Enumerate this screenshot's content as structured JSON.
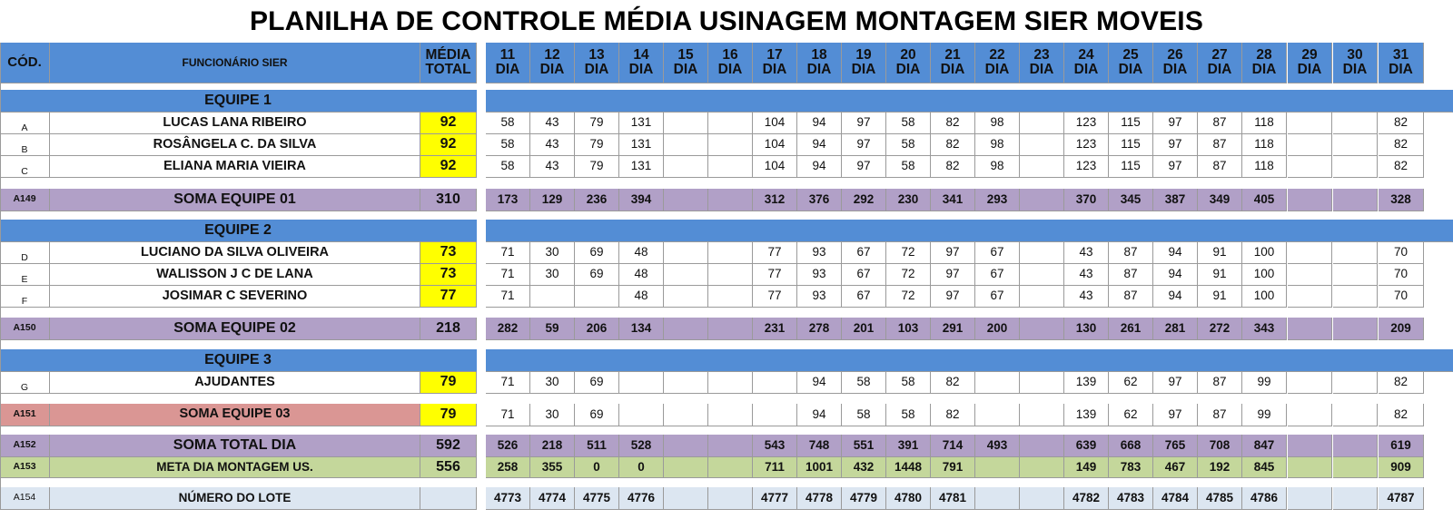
{
  "title": "PLANILHA DE CONTROLE MÉDIA USINAGEM  MONTAGEM SIER MOVEIS",
  "header": {
    "cod": "CÓD.",
    "funcionario": "FUNCIONÁRIO SIER",
    "media_l1": "MÉDIA",
    "media_l2": "TOTAL",
    "day_word": "DIA",
    "days": [
      "11",
      "12",
      "13",
      "14",
      "15",
      "16",
      "17",
      "18",
      "19",
      "20",
      "21",
      "22",
      "23",
      "24",
      "25",
      "26",
      "27",
      "28",
      "29",
      "30",
      "31"
    ]
  },
  "teams": [
    {
      "label": "EQUIPE 1",
      "members": [
        {
          "code": "A",
          "name": "LUCAS LANA RIBEIRO",
          "media": "92",
          "values": [
            "58",
            "43",
            "79",
            "131",
            "",
            "",
            "104",
            "94",
            "97",
            "58",
            "82",
            "98",
            "",
            "123",
            "115",
            "97",
            "87",
            "118",
            "",
            "",
            "82"
          ]
        },
        {
          "code": "B",
          "name": "ROSÂNGELA C. DA SILVA",
          "media": "92",
          "values": [
            "58",
            "43",
            "79",
            "131",
            "",
            "",
            "104",
            "94",
            "97",
            "58",
            "82",
            "98",
            "",
            "123",
            "115",
            "97",
            "87",
            "118",
            "",
            "",
            "82"
          ]
        },
        {
          "code": "C",
          "name": "ELIANA MARIA VIEIRA",
          "media": "92",
          "values": [
            "58",
            "43",
            "79",
            "131",
            "",
            "",
            "104",
            "94",
            "97",
            "58",
            "82",
            "98",
            "",
            "123",
            "115",
            "97",
            "87",
            "118",
            "",
            "",
            "82"
          ]
        }
      ],
      "sum": {
        "code": "A149",
        "label": "SOMA EQUIPE 01",
        "media": "310",
        "values": [
          "173",
          "129",
          "236",
          "394",
          "",
          "",
          "312",
          "376",
          "292",
          "230",
          "341",
          "293",
          "",
          "370",
          "345",
          "387",
          "349",
          "405",
          "",
          "",
          "328"
        ]
      }
    },
    {
      "label": "EQUIPE 2",
      "members": [
        {
          "code": "D",
          "name": "LUCIANO DA SILVA OLIVEIRA",
          "media": "73",
          "values": [
            "71",
            "30",
            "69",
            "48",
            "",
            "",
            "77",
            "93",
            "67",
            "72",
            "97",
            "67",
            "",
            "43",
            "87",
            "94",
            "91",
            "100",
            "",
            "",
            "70"
          ]
        },
        {
          "code": "E",
          "name": "WALISSON J C DE LANA",
          "media": "73",
          "values": [
            "71",
            "30",
            "69",
            "48",
            "",
            "",
            "77",
            "93",
            "67",
            "72",
            "97",
            "67",
            "",
            "43",
            "87",
            "94",
            "91",
            "100",
            "",
            "",
            "70"
          ]
        },
        {
          "code": "F",
          "name": "JOSIMAR C SEVERINO",
          "media": "77",
          "values": [
            "71",
            "",
            "",
            "48",
            "",
            "",
            "77",
            "93",
            "67",
            "72",
            "97",
            "67",
            "",
            "43",
            "87",
            "94",
            "91",
            "100",
            "",
            "",
            "70"
          ]
        }
      ],
      "sum": {
        "code": "A150",
        "label": "SOMA EQUIPE 02",
        "media": "218",
        "values": [
          "282",
          "59",
          "206",
          "134",
          "",
          "",
          "231",
          "278",
          "201",
          "103",
          "291",
          "200",
          "",
          "130",
          "261",
          "281",
          "272",
          "343",
          "",
          "",
          "209"
        ]
      }
    },
    {
      "label": "EQUIPE 3",
      "members": [
        {
          "code": "G",
          "name": "AJUDANTES",
          "media": "79",
          "values": [
            "71",
            "30",
            "69",
            "",
            "",
            "",
            "",
            "94",
            "58",
            "58",
            "82",
            "",
            "",
            "139",
            "62",
            "97",
            "87",
            "99",
            "",
            "",
            "82"
          ]
        }
      ],
      "sum": {
        "code": "A151",
        "label": "SOMA EQUIPE 03",
        "media": "79",
        "values": [
          "71",
          "30",
          "69",
          "",
          "",
          "",
          "",
          "94",
          "58",
          "58",
          "82",
          "",
          "",
          "139",
          "62",
          "97",
          "87",
          "99",
          "",
          "",
          "82"
        ]
      }
    }
  ],
  "totals": [
    {
      "code": "A152",
      "label": "SOMA TOTAL DIA",
      "media": "592",
      "values": [
        "526",
        "218",
        "511",
        "528",
        "",
        "",
        "543",
        "748",
        "551",
        "391",
        "714",
        "493",
        "",
        "639",
        "668",
        "765",
        "708",
        "847",
        "",
        "",
        "619"
      ]
    },
    {
      "code": "A153",
      "label": "META DIA MONTAGEM US.",
      "media": "556",
      "values": [
        "258",
        "355",
        "0",
        "0",
        "",
        "",
        "711",
        "1001",
        "432",
        "1448",
        "791",
        "",
        "",
        "149",
        "783",
        "467",
        "192",
        "845",
        "",
        "",
        "909"
      ]
    }
  ],
  "lote": {
    "code": "A154",
    "label": "NÚMERO DO LOTE",
    "values": [
      "4773",
      "4774",
      "4775",
      "4776",
      "",
      "",
      "4777",
      "4778",
      "4779",
      "4780",
      "4781",
      "",
      "",
      "4782",
      "4783",
      "4784",
      "4785",
      "4786",
      "",
      "",
      "4787"
    ]
  },
  "colors": {
    "header_blue": "#538dd5",
    "sum_purple": "#b1a0c7",
    "sum_red": "#da9694",
    "meta_green": "#c4d79b",
    "lote_light": "#dce6f1",
    "media_yellow": "#ffff00"
  }
}
